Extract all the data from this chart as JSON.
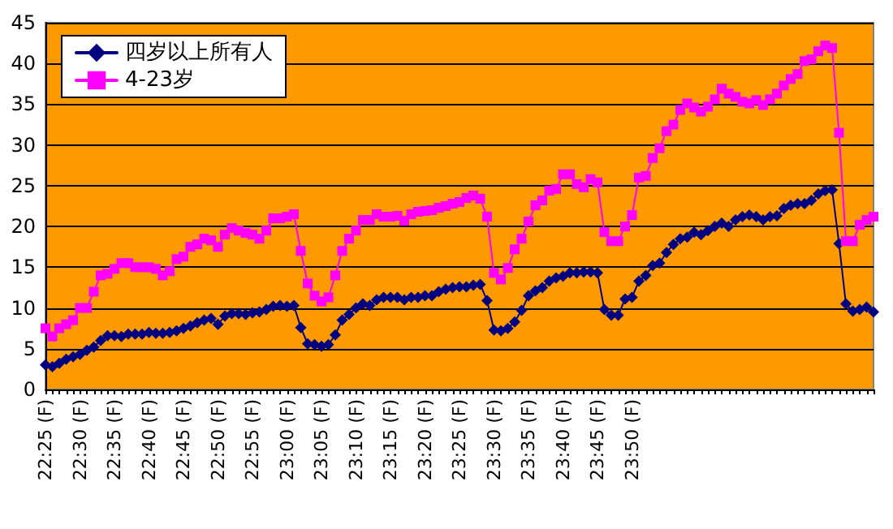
{
  "chart_data": {
    "type": "line",
    "categories": [
      "22:25 (F)",
      null,
      null,
      null,
      null,
      "22:30 (F)",
      null,
      null,
      null,
      null,
      "22:35 (F)",
      null,
      null,
      null,
      null,
      "22:40 (F)",
      null,
      null,
      null,
      null,
      "22:45 (F)",
      null,
      null,
      null,
      null,
      "22:50 (F)",
      null,
      null,
      null,
      null,
      "22:55 (F)",
      null,
      null,
      null,
      null,
      "23:00 (F)",
      null,
      null,
      null,
      null,
      "23:05 (F)",
      null,
      null,
      null,
      null,
      "23:10 (F)",
      null,
      null,
      null,
      null,
      "23:15 (F)",
      null,
      null,
      null,
      null,
      "23:20 (F)",
      null,
      null,
      null,
      null,
      "23:25 (F)",
      null,
      null,
      null,
      null,
      "23:30 (F)",
      null,
      null,
      null,
      null,
      "23:35 (F)",
      null,
      null,
      null,
      null,
      "23:40 (F)",
      null,
      null,
      null,
      null,
      "23:45 (F)",
      null,
      null,
      null,
      null,
      "23:50 (F)",
      null,
      null,
      null,
      null,
      null,
      null,
      null,
      null,
      null,
      null,
      null,
      null,
      null,
      null,
      null,
      null,
      null,
      null,
      null,
      null,
      null,
      null,
      null,
      null,
      null,
      null,
      null,
      null,
      null,
      null,
      null,
      null,
      null,
      null,
      null
    ],
    "series": [
      {
        "name": "四岁以上所有人",
        "color": "#000080",
        "marker": "diamond",
        "values": [
          3.0,
          2.8,
          3.2,
          3.7,
          4.0,
          4.3,
          4.8,
          5.2,
          6.0,
          6.6,
          6.6,
          6.5,
          6.8,
          6.8,
          6.8,
          7.0,
          6.9,
          6.9,
          7.0,
          7.2,
          7.5,
          7.8,
          8.2,
          8.5,
          8.7,
          8.0,
          9.0,
          9.3,
          9.3,
          9.2,
          9.4,
          9.5,
          9.8,
          10.2,
          10.3,
          10.2,
          10.3,
          7.6,
          5.6,
          5.5,
          5.3,
          5.5,
          6.7,
          8.5,
          9.2,
          10.0,
          10.5,
          10.3,
          11.0,
          11.3,
          11.3,
          11.3,
          11.0,
          11.3,
          11.3,
          11.5,
          11.5,
          12.0,
          12.3,
          12.5,
          12.6,
          12.6,
          12.8,
          12.9,
          10.9,
          7.3,
          7.2,
          7.5,
          8.3,
          9.7,
          11.5,
          12.1,
          12.5,
          13.3,
          13.7,
          13.9,
          14.3,
          14.3,
          14.4,
          14.4,
          14.3,
          9.8,
          9.1,
          9.1,
          11.1,
          11.3,
          13.3,
          14.0,
          15.2,
          15.5,
          16.8,
          17.8,
          18.5,
          18.7,
          19.3,
          19.0,
          19.5,
          20.0,
          20.4,
          20.0,
          20.8,
          21.2,
          21.4,
          21.2,
          20.8,
          21.2,
          21.3,
          22.2,
          22.6,
          22.8,
          22.8,
          23.2,
          24.0,
          24.4,
          24.5,
          17.9,
          10.5,
          9.6,
          9.8,
          10.1,
          9.5
        ]
      },
      {
        "name": "4-23岁",
        "color": "#ff00ff",
        "marker": "square",
        "values": [
          7.5,
          6.5,
          7.5,
          8.0,
          8.5,
          10.0,
          10.0,
          12.0,
          14.0,
          14.2,
          14.8,
          15.5,
          15.5,
          15.0,
          15.0,
          15.0,
          14.8,
          14.0,
          14.5,
          16.0,
          16.3,
          17.5,
          17.8,
          18.5,
          18.3,
          17.5,
          19.0,
          19.8,
          19.5,
          19.2,
          19.0,
          18.5,
          19.5,
          21.0,
          21.0,
          21.2,
          21.5,
          17.0,
          13.0,
          11.5,
          10.8,
          11.3,
          14.0,
          17.0,
          18.5,
          19.5,
          20.8,
          20.8,
          21.5,
          21.2,
          21.2,
          21.3,
          20.7,
          21.5,
          21.8,
          21.9,
          22.0,
          22.3,
          22.5,
          22.8,
          23.0,
          23.5,
          23.8,
          23.4,
          21.2,
          14.3,
          13.5,
          14.9,
          17.2,
          18.5,
          20.6,
          22.6,
          23.2,
          24.4,
          24.6,
          26.4,
          26.4,
          25.2,
          24.8,
          25.8,
          25.4,
          19.3,
          18.2,
          18.2,
          20.0,
          21.4,
          26.0,
          26.2,
          28.4,
          29.6,
          31.7,
          32.5,
          34.3,
          35.1,
          34.6,
          34.1,
          34.7,
          35.6,
          36.9,
          36.3,
          35.9,
          35.3,
          35.1,
          35.5,
          34.9,
          35.6,
          36.3,
          37.3,
          38.1,
          38.7,
          40.3,
          40.5,
          41.5,
          42.2,
          41.9,
          31.5,
          18.2,
          18.2,
          20.2,
          20.8,
          21.2
        ]
      }
    ],
    "ylim": [
      0,
      45
    ],
    "yticks": [
      0,
      5,
      10,
      15,
      20,
      25,
      30,
      35,
      40,
      45
    ],
    "grid": "y",
    "legend": "top left"
  }
}
